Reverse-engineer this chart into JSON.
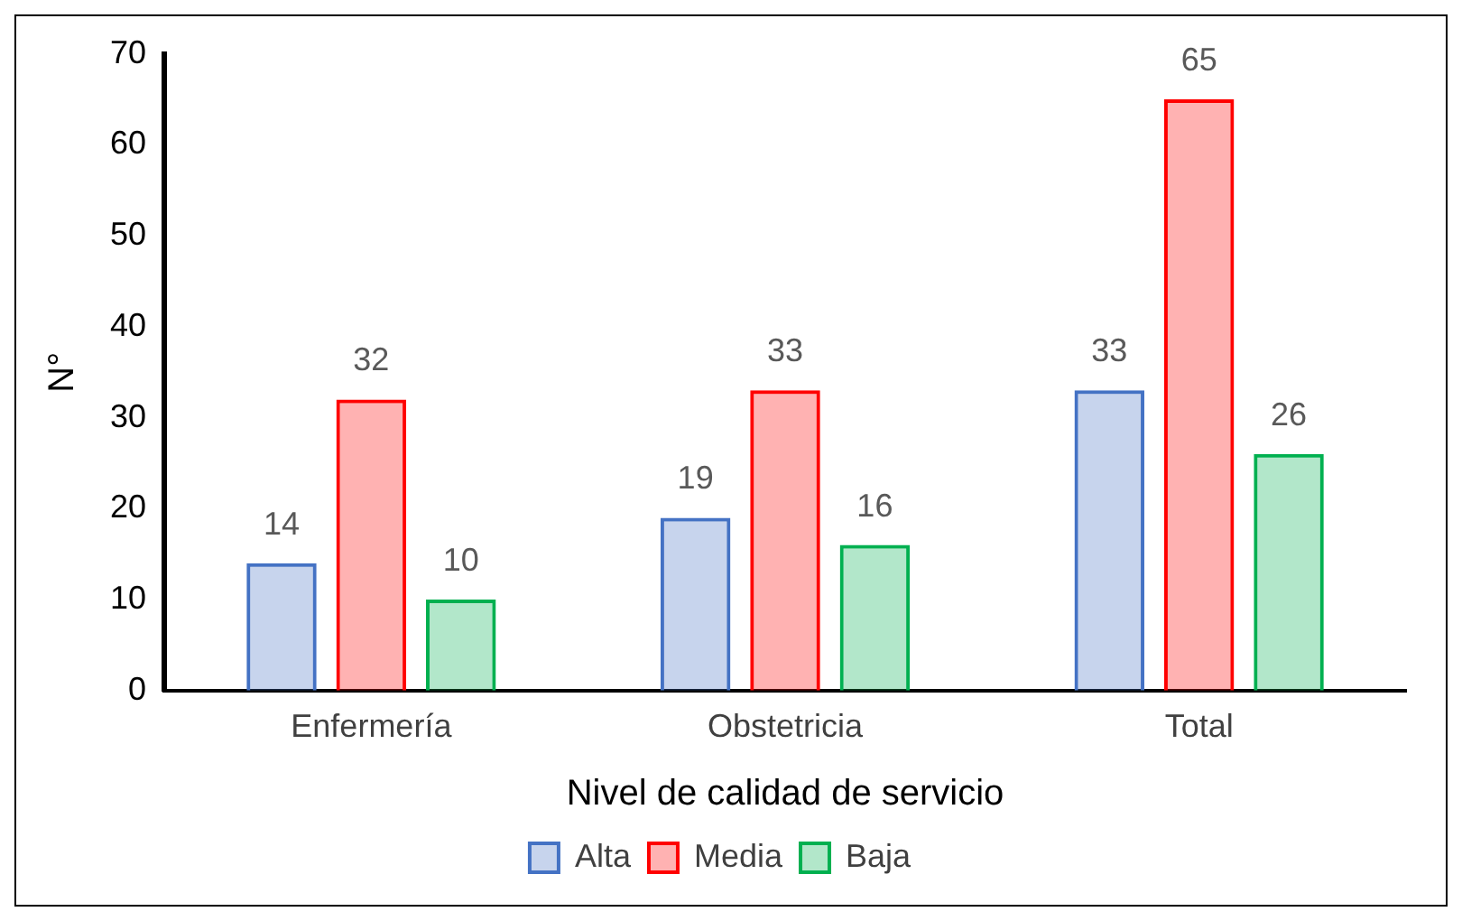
{
  "chart_data": {
    "type": "bar",
    "xlabel": "Nivel de calidad de servicio",
    "ylabel": "N°",
    "categories": [
      "Enfermería",
      "Obstetricia",
      "Total"
    ],
    "series": [
      {
        "name": "Alta",
        "color": "#4472c4",
        "values": [
          14,
          19,
          33
        ]
      },
      {
        "name": "Media",
        "color": "#ff0000",
        "values": [
          32,
          33,
          65
        ]
      },
      {
        "name": "Baja",
        "color": "#00b050",
        "values": [
          10,
          16,
          26
        ]
      }
    ],
    "ylim": [
      0,
      70
    ],
    "yticks": [
      0,
      10,
      20,
      30,
      40,
      50,
      60,
      70
    ],
    "grid": false,
    "legend": "bottom",
    "data_labels": true
  }
}
